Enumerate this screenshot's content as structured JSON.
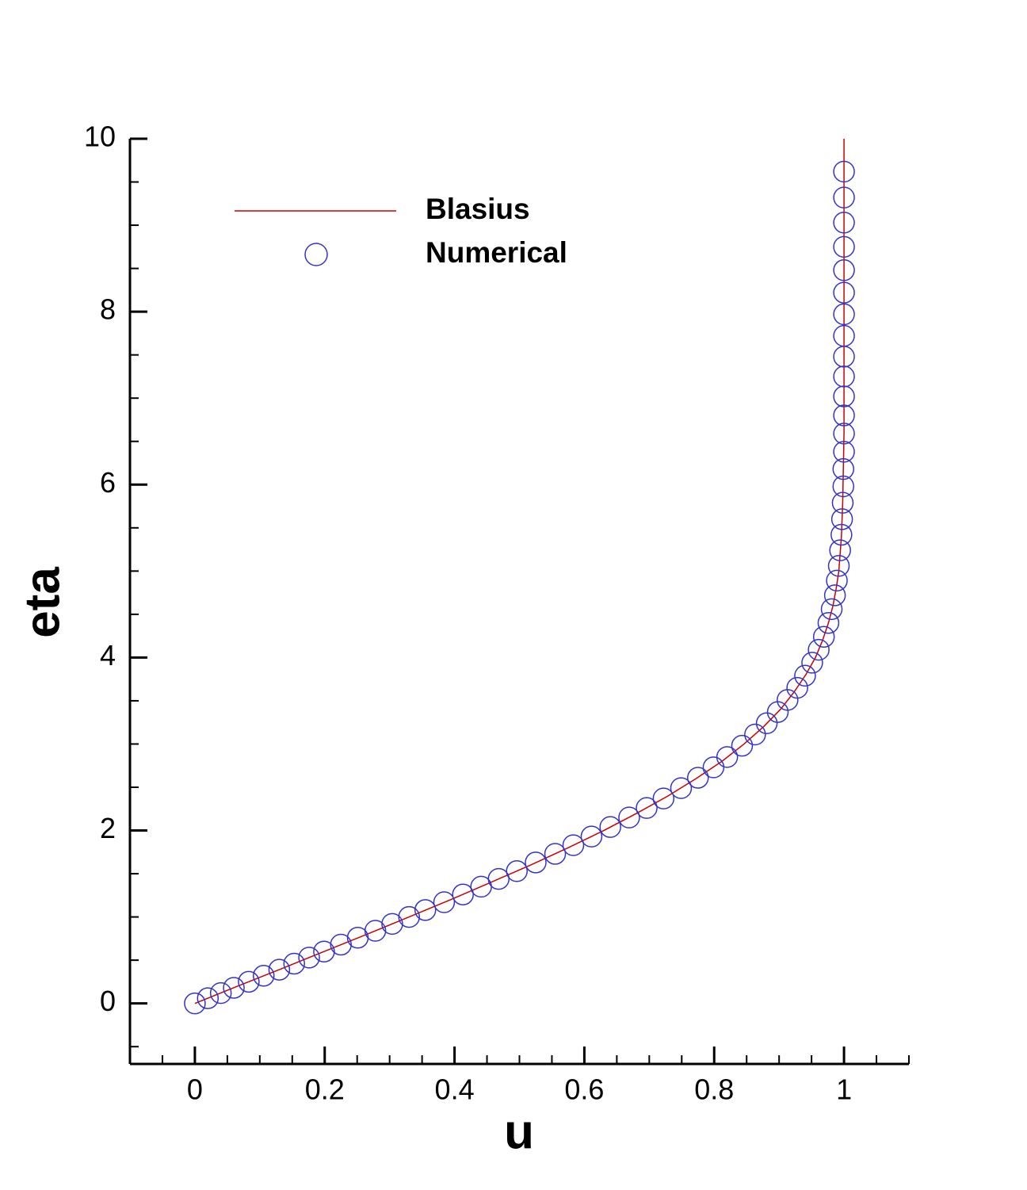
{
  "chart_data": {
    "type": "line",
    "xlabel": "u",
    "ylabel": "eta",
    "xlim": [
      -0.1,
      1.1
    ],
    "ylim": [
      -0.7,
      10
    ],
    "xticks": [
      0,
      0.2,
      0.4,
      0.6,
      0.8,
      1
    ],
    "yticks": [
      0,
      2,
      4,
      6,
      8,
      10
    ],
    "legend": "top-left",
    "series": [
      {
        "name": "Blasius",
        "color": "#cc0000",
        "mode": "line",
        "x": [
          0,
          0.066,
          0.133,
          0.199,
          0.265,
          0.33,
          0.394,
          0.456,
          0.517,
          0.575,
          0.63,
          0.681,
          0.729,
          0.772,
          0.812,
          0.846,
          0.876,
          0.902,
          0.923,
          0.941,
          0.956,
          0.967,
          0.976,
          0.983,
          0.988,
          0.992,
          0.996,
          0.998,
          0.999,
          1,
          1,
          1
        ],
        "values": [
          0,
          0.2,
          0.4,
          0.6,
          0.8,
          1.0,
          1.2,
          1.4,
          1.6,
          1.8,
          2.0,
          2.2,
          2.4,
          2.6,
          2.8,
          3.0,
          3.2,
          3.4,
          3.6,
          3.8,
          4.0,
          4.2,
          4.4,
          4.6,
          4.8,
          5.0,
          5.4,
          5.8,
          6.2,
          6.6,
          8,
          10
        ]
      },
      {
        "name": "Numerical",
        "color": "#3333cc",
        "mode": "markers",
        "x": [
          0,
          0.02,
          0.04,
          0.06,
          0.083,
          0.106,
          0.13,
          0.153,
          0.176,
          0.199,
          0.225,
          0.251,
          0.278,
          0.304,
          0.33,
          0.355,
          0.384,
          0.413,
          0.441,
          0.468,
          0.496,
          0.525,
          0.555,
          0.583,
          0.611,
          0.64,
          0.669,
          0.696,
          0.722,
          0.749,
          0.775,
          0.799,
          0.82,
          0.843,
          0.863,
          0.881,
          0.898,
          0.913,
          0.928,
          0.94,
          0.951,
          0.961,
          0.969,
          0.976,
          0.981,
          0.986,
          0.989,
          0.992,
          0.994,
          0.996,
          0.997,
          0.998,
          0.999,
          0.999,
          1,
          1,
          1,
          1,
          1,
          1,
          1,
          1,
          1,
          1,
          1,
          1,
          1,
          1
        ],
        "values": [
          0,
          0.06,
          0.12,
          0.18,
          0.25,
          0.32,
          0.39,
          0.46,
          0.53,
          0.6,
          0.68,
          0.76,
          0.84,
          0.92,
          1.0,
          1.08,
          1.17,
          1.26,
          1.35,
          1.44,
          1.53,
          1.63,
          1.73,
          1.83,
          1.93,
          2.04,
          2.15,
          2.26,
          2.37,
          2.49,
          2.61,
          2.73,
          2.85,
          2.98,
          3.11,
          3.24,
          3.37,
          3.51,
          3.65,
          3.79,
          3.94,
          4.09,
          4.24,
          4.4,
          4.56,
          4.72,
          4.89,
          5.06,
          5.24,
          5.42,
          5.6,
          5.79,
          5.98,
          6.18,
          6.38,
          6.59,
          6.8,
          7.02,
          7.25,
          7.48,
          7.72,
          7.97,
          8.22,
          8.48,
          8.75,
          9.03,
          9.32,
          9.62
        ]
      }
    ]
  }
}
